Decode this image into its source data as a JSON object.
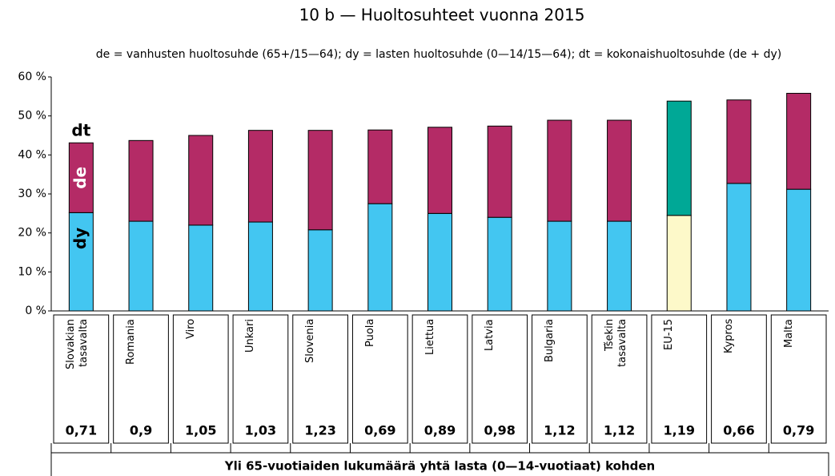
{
  "chart_data": {
    "type": "bar",
    "title": "10 b — Huoltosuhteet vuonna 2015",
    "subtitle": "de = vanhusten huoltosuhde (65+/15—64); dy = lasten huoltosuhde (0—14/15—64); dt = kokonaishuoltosuhde (de + dy)",
    "categories": [
      "Slovakian\ntasavalta",
      "Romania",
      "Viro",
      "Unkari",
      "Slovenia",
      "Puola",
      "Liettua",
      "Latvia",
      "Bulgaria",
      "Tšekin\ntasavalta",
      "EU-15",
      "Kypros",
      "Malta"
    ],
    "series": [
      {
        "name": "dy",
        "color": "#43c6f1",
        "colors": [
          "#43c6f1",
          "#43c6f1",
          "#43c6f1",
          "#43c6f1",
          "#43c6f1",
          "#43c6f1",
          "#43c6f1",
          "#43c6f1",
          "#43c6f1",
          "#43c6f1",
          "#fdf9c9",
          "#43c6f1",
          "#43c6f1"
        ],
        "values": [
          25.2,
          23,
          22,
          22.8,
          20.8,
          27.5,
          25,
          24,
          23,
          23,
          24.5,
          32.7,
          31.2
        ]
      },
      {
        "name": "de",
        "color": "#b42b66",
        "colors": [
          "#b42b66",
          "#b42b66",
          "#b42b66",
          "#b42b66",
          "#b42b66",
          "#b42b66",
          "#b42b66",
          "#b42b66",
          "#b42b66",
          "#b42b66",
          "#00a896",
          "#b42b66",
          "#b42b66"
        ],
        "values": [
          17.9,
          20.7,
          23,
          23.5,
          25.5,
          18.9,
          22.1,
          23.4,
          25.9,
          25.9,
          29.3,
          21.4,
          24.6
        ]
      }
    ],
    "total_label": "dt",
    "ratios": [
      0.71,
      0.9,
      1.05,
      1.03,
      1.23,
      0.69,
      0.89,
      0.98,
      1.12,
      1.12,
      1.19,
      0.66,
      0.79
    ],
    "ratio_labels": [
      "0,71",
      "0,9",
      "1,05",
      "1,03",
      "1,23",
      "0,69",
      "0,89",
      "0,98",
      "1,12",
      "1,12",
      "1,19",
      "0,66",
      "0,79"
    ],
    "ratio_title": "Yli 65-vuotiaiden lukumäärä yhtä lasta (0—14-vuotiaat) kohden",
    "ylim": [
      0,
      60
    ],
    "yticks": [
      {
        "value": 0,
        "label": "0 %"
      },
      {
        "value": 10,
        "label": "10 %"
      },
      {
        "value": 20,
        "label": "20 %"
      },
      {
        "value": 30,
        "label": "30 %"
      },
      {
        "value": 40,
        "label": "40 %"
      },
      {
        "value": 50,
        "label": "50 %"
      },
      {
        "value": 60,
        "label": "60 %"
      }
    ],
    "stacked": true
  }
}
